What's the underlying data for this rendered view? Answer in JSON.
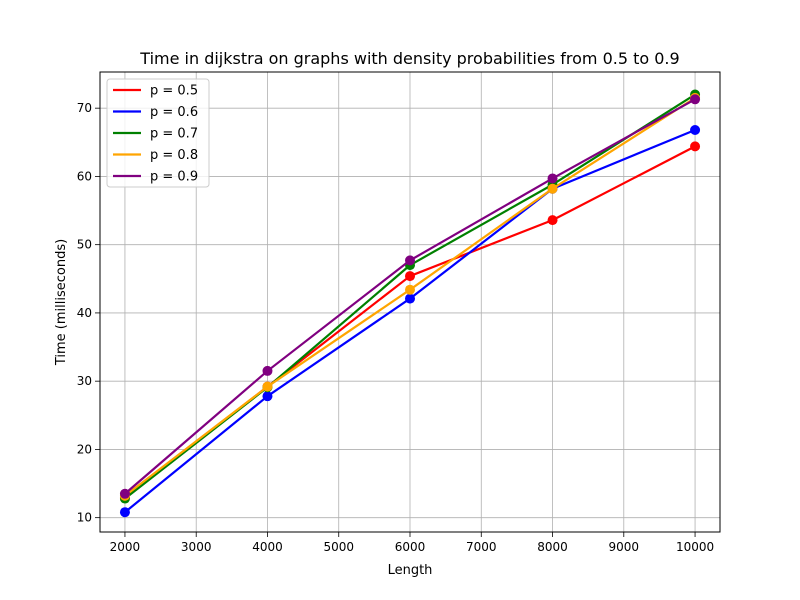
{
  "chart_data": {
    "type": "line",
    "title": "Time in dijkstra on graphs with density probabilities from 0.5 to 0.9",
    "xlabel": "Length",
    "ylabel": "Time (milliseconds)",
    "x": [
      2000,
      4000,
      6000,
      8000,
      10000
    ],
    "xlim": [
      1650,
      10350
    ],
    "ylim": [
      7.9,
      75.3
    ],
    "xticks": [
      2000,
      3000,
      4000,
      5000,
      6000,
      7000,
      8000,
      9000,
      10000
    ],
    "yticks": [
      10,
      20,
      30,
      40,
      50,
      60,
      70
    ],
    "grid": true,
    "legend_position": "upper left",
    "series": [
      {
        "name": "p = 0.5",
        "color": "#ff0000",
        "values": [
          12.9,
          29.2,
          45.4,
          53.6,
          64.4
        ]
      },
      {
        "name": "p = 0.6",
        "color": "#0000ff",
        "values": [
          10.8,
          27.8,
          42.1,
          58.2,
          66.8
        ]
      },
      {
        "name": "p = 0.7",
        "color": "#008000",
        "values": [
          12.8,
          29.1,
          47.0,
          58.8,
          72.0
        ]
      },
      {
        "name": "p = 0.8",
        "color": "#ffa500",
        "values": [
          13.2,
          29.2,
          43.4,
          58.2,
          71.5
        ]
      },
      {
        "name": "p = 0.9",
        "color": "#800080",
        "values": [
          13.5,
          31.5,
          47.7,
          59.7,
          71.3
        ]
      }
    ]
  }
}
